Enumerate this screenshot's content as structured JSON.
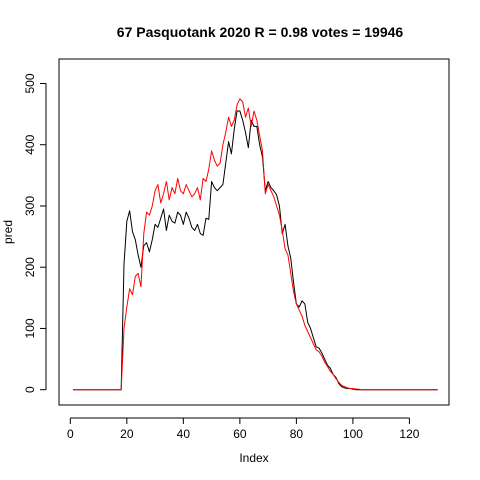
{
  "chart_data": {
    "type": "line",
    "title": "67 Pasquotank 2020 R = 0.98 votes = 19946",
    "xlabel": "Index",
    "ylabel": "pred",
    "xlim": [
      -4,
      134
    ],
    "ylim": [
      -25,
      540
    ],
    "xticks": [
      0,
      20,
      40,
      60,
      80,
      100,
      120
    ],
    "yticks": [
      0,
      100,
      200,
      300,
      400,
      500
    ],
    "grid": false,
    "legend": "none",
    "series": [
      {
        "color": "#000000",
        "x": [
          1,
          2,
          3,
          4,
          5,
          6,
          7,
          8,
          9,
          10,
          11,
          12,
          13,
          14,
          15,
          16,
          17,
          18,
          19,
          20,
          21,
          22,
          23,
          24,
          25,
          26,
          27,
          28,
          29,
          30,
          31,
          32,
          33,
          34,
          35,
          36,
          37,
          38,
          39,
          40,
          41,
          42,
          43,
          44,
          45,
          46,
          47,
          48,
          49,
          50,
          51,
          52,
          53,
          54,
          55,
          56,
          57,
          58,
          59,
          60,
          61,
          62,
          63,
          64,
          65,
          66,
          67,
          68,
          69,
          70,
          71,
          72,
          73,
          74,
          75,
          76,
          77,
          78,
          79,
          80,
          81,
          82,
          83,
          84,
          85,
          86,
          87,
          88,
          89,
          90,
          91,
          92,
          93,
          94,
          95,
          96,
          97,
          98,
          99,
          100,
          101,
          102,
          103,
          104,
          105,
          106,
          107,
          108,
          109,
          110,
          111,
          112,
          113,
          114,
          115,
          116,
          117,
          118,
          119,
          120,
          121,
          122,
          123,
          124,
          125,
          126,
          127,
          128,
          129,
          130
        ],
        "values": [
          0,
          0,
          0,
          0,
          0,
          0,
          0,
          0,
          0,
          0,
          0,
          0,
          0,
          0,
          0,
          0,
          0,
          0,
          205,
          275,
          292,
          258,
          245,
          220,
          200,
          235,
          240,
          225,
          245,
          270,
          265,
          280,
          295,
          260,
          285,
          275,
          272,
          290,
          285,
          270,
          290,
          280,
          265,
          260,
          270,
          255,
          252,
          280,
          278,
          340,
          330,
          325,
          330,
          335,
          370,
          405,
          385,
          425,
          455,
          455,
          440,
          420,
          395,
          440,
          430,
          430,
          400,
          380,
          325,
          340,
          330,
          325,
          318,
          300,
          255,
          270,
          235,
          215,
          175,
          140,
          135,
          145,
          140,
          110,
          100,
          85,
          70,
          68,
          60,
          50,
          40,
          35,
          25,
          20,
          10,
          5,
          3,
          2,
          2,
          1,
          0,
          0,
          0,
          0,
          0,
          0,
          0,
          0,
          0,
          0,
          0,
          0,
          0,
          0,
          0,
          0,
          0,
          0,
          0,
          0,
          0,
          0,
          0,
          0,
          0,
          0,
          0,
          0,
          0,
          0
        ]
      },
      {
        "color": "#ff0000",
        "x": [
          1,
          2,
          3,
          4,
          5,
          6,
          7,
          8,
          9,
          10,
          11,
          12,
          13,
          14,
          15,
          16,
          17,
          18,
          19,
          20,
          21,
          22,
          23,
          24,
          25,
          26,
          27,
          28,
          29,
          30,
          31,
          32,
          33,
          34,
          35,
          36,
          37,
          38,
          39,
          40,
          41,
          42,
          43,
          44,
          45,
          46,
          47,
          48,
          49,
          50,
          51,
          52,
          53,
          54,
          55,
          56,
          57,
          58,
          59,
          60,
          61,
          62,
          63,
          64,
          65,
          66,
          67,
          68,
          69,
          70,
          71,
          72,
          73,
          74,
          75,
          76,
          77,
          78,
          79,
          80,
          81,
          82,
          83,
          84,
          85,
          86,
          87,
          88,
          89,
          90,
          91,
          92,
          93,
          94,
          95,
          96,
          97,
          98,
          99,
          100,
          101,
          102,
          103,
          104,
          105,
          106,
          107,
          108,
          109,
          110,
          111,
          112,
          113,
          114,
          115,
          116,
          117,
          118,
          119,
          120,
          121,
          122,
          123,
          124,
          125,
          126,
          127,
          128,
          129,
          130
        ],
        "values": [
          0,
          0,
          0,
          0,
          0,
          0,
          0,
          0,
          0,
          0,
          0,
          0,
          0,
          0,
          0,
          0,
          0,
          0,
          100,
          135,
          165,
          155,
          185,
          190,
          168,
          255,
          290,
          285,
          300,
          325,
          335,
          305,
          320,
          340,
          310,
          330,
          320,
          345,
          325,
          320,
          335,
          325,
          315,
          320,
          330,
          310,
          345,
          340,
          360,
          390,
          375,
          365,
          370,
          400,
          420,
          445,
          430,
          440,
          465,
          475,
          470,
          445,
          460,
          430,
          455,
          440,
          415,
          390,
          320,
          335,
          325,
          315,
          300,
          285,
          260,
          230,
          220,
          190,
          160,
          140,
          130,
          120,
          105,
          95,
          85,
          75,
          65,
          62,
          55,
          45,
          38,
          30,
          25,
          18,
          12,
          7,
          5,
          3,
          2,
          2,
          1,
          1,
          0,
          0,
          0,
          0,
          0,
          0,
          0,
          0,
          0,
          0,
          0,
          0,
          0,
          0,
          0,
          0,
          0,
          0,
          0,
          0,
          0,
          0,
          0,
          0,
          0,
          0,
          0,
          0
        ]
      }
    ]
  }
}
